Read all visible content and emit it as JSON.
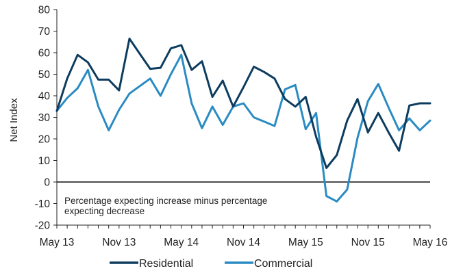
{
  "chart_data": {
    "type": "line",
    "title": "",
    "xlabel": "",
    "ylabel": "Net Index",
    "ylim": [
      -20,
      80
    ],
    "yticks": [
      -20,
      -10,
      0,
      10,
      20,
      30,
      40,
      50,
      60,
      70,
      80
    ],
    "ytick_labels": [
      "-20",
      "-10",
      "0",
      "10",
      "20",
      "30",
      "40",
      "50",
      "60",
      "70",
      "80"
    ],
    "x_tick_labels": [
      {
        "index": 0,
        "label": "May 13"
      },
      {
        "index": 6,
        "label": "Nov 13"
      },
      {
        "index": 12,
        "label": "May 14"
      },
      {
        "index": 18,
        "label": "Nov 14"
      },
      {
        "index": 24,
        "label": "May 15"
      },
      {
        "index": 30,
        "label": "Nov 15"
      },
      {
        "index": 36,
        "label": "May 16"
      }
    ],
    "x": [
      "May 13",
      "Jun 13",
      "Jul 13",
      "Aug 13",
      "Sep 13",
      "Oct 13",
      "Nov 13",
      "Dec 13",
      "Jan 14",
      "Feb 14",
      "Mar 14",
      "Apr 14",
      "May 14",
      "Jun 14",
      "Jul 14",
      "Aug 14",
      "Sep 14",
      "Oct 14",
      "Nov 14",
      "Dec 14",
      "Jan 15",
      "Feb 15",
      "Mar 15",
      "Apr 15",
      "May 15",
      "Jun 15",
      "Jul 15",
      "Aug 15",
      "Sep 15",
      "Oct 15",
      "Nov 15",
      "Dec 15",
      "Jan 16",
      "Feb 16",
      "Mar 16",
      "Apr 16",
      "May 16"
    ],
    "series": [
      {
        "name": "Residential",
        "color": "#0d3c5e",
        "values": [
          33,
          48,
          59,
          55.5,
          47.5,
          47.5,
          42.5,
          66.5,
          59.5,
          52.5,
          53,
          62,
          63.5,
          52,
          56,
          39.5,
          47,
          35,
          44,
          53.5,
          51,
          48,
          38.5,
          35,
          39.5,
          21,
          6.5,
          12.5,
          28.5,
          38.5,
          23,
          32,
          23,
          14.5,
          35.5,
          36.5,
          36.5
        ]
      },
      {
        "name": "Commercial",
        "color": "#2a8bc2",
        "values": [
          33,
          39,
          43.5,
          52,
          35,
          24,
          33.5,
          41,
          44.5,
          48,
          40,
          50,
          59,
          36.5,
          25,
          35,
          26.5,
          35,
          36.5,
          30,
          28,
          26,
          43,
          45,
          24.5,
          32,
          -6.5,
          -9,
          -3.5,
          20.5,
          37.5,
          45.5,
          34.5,
          24,
          29.5,
          24,
          28.5
        ]
      }
    ],
    "annotation": [
      "Percentage expecting increase minus percentage",
      "expecting decrease"
    ],
    "grid": false,
    "legend_position": "bottom"
  }
}
